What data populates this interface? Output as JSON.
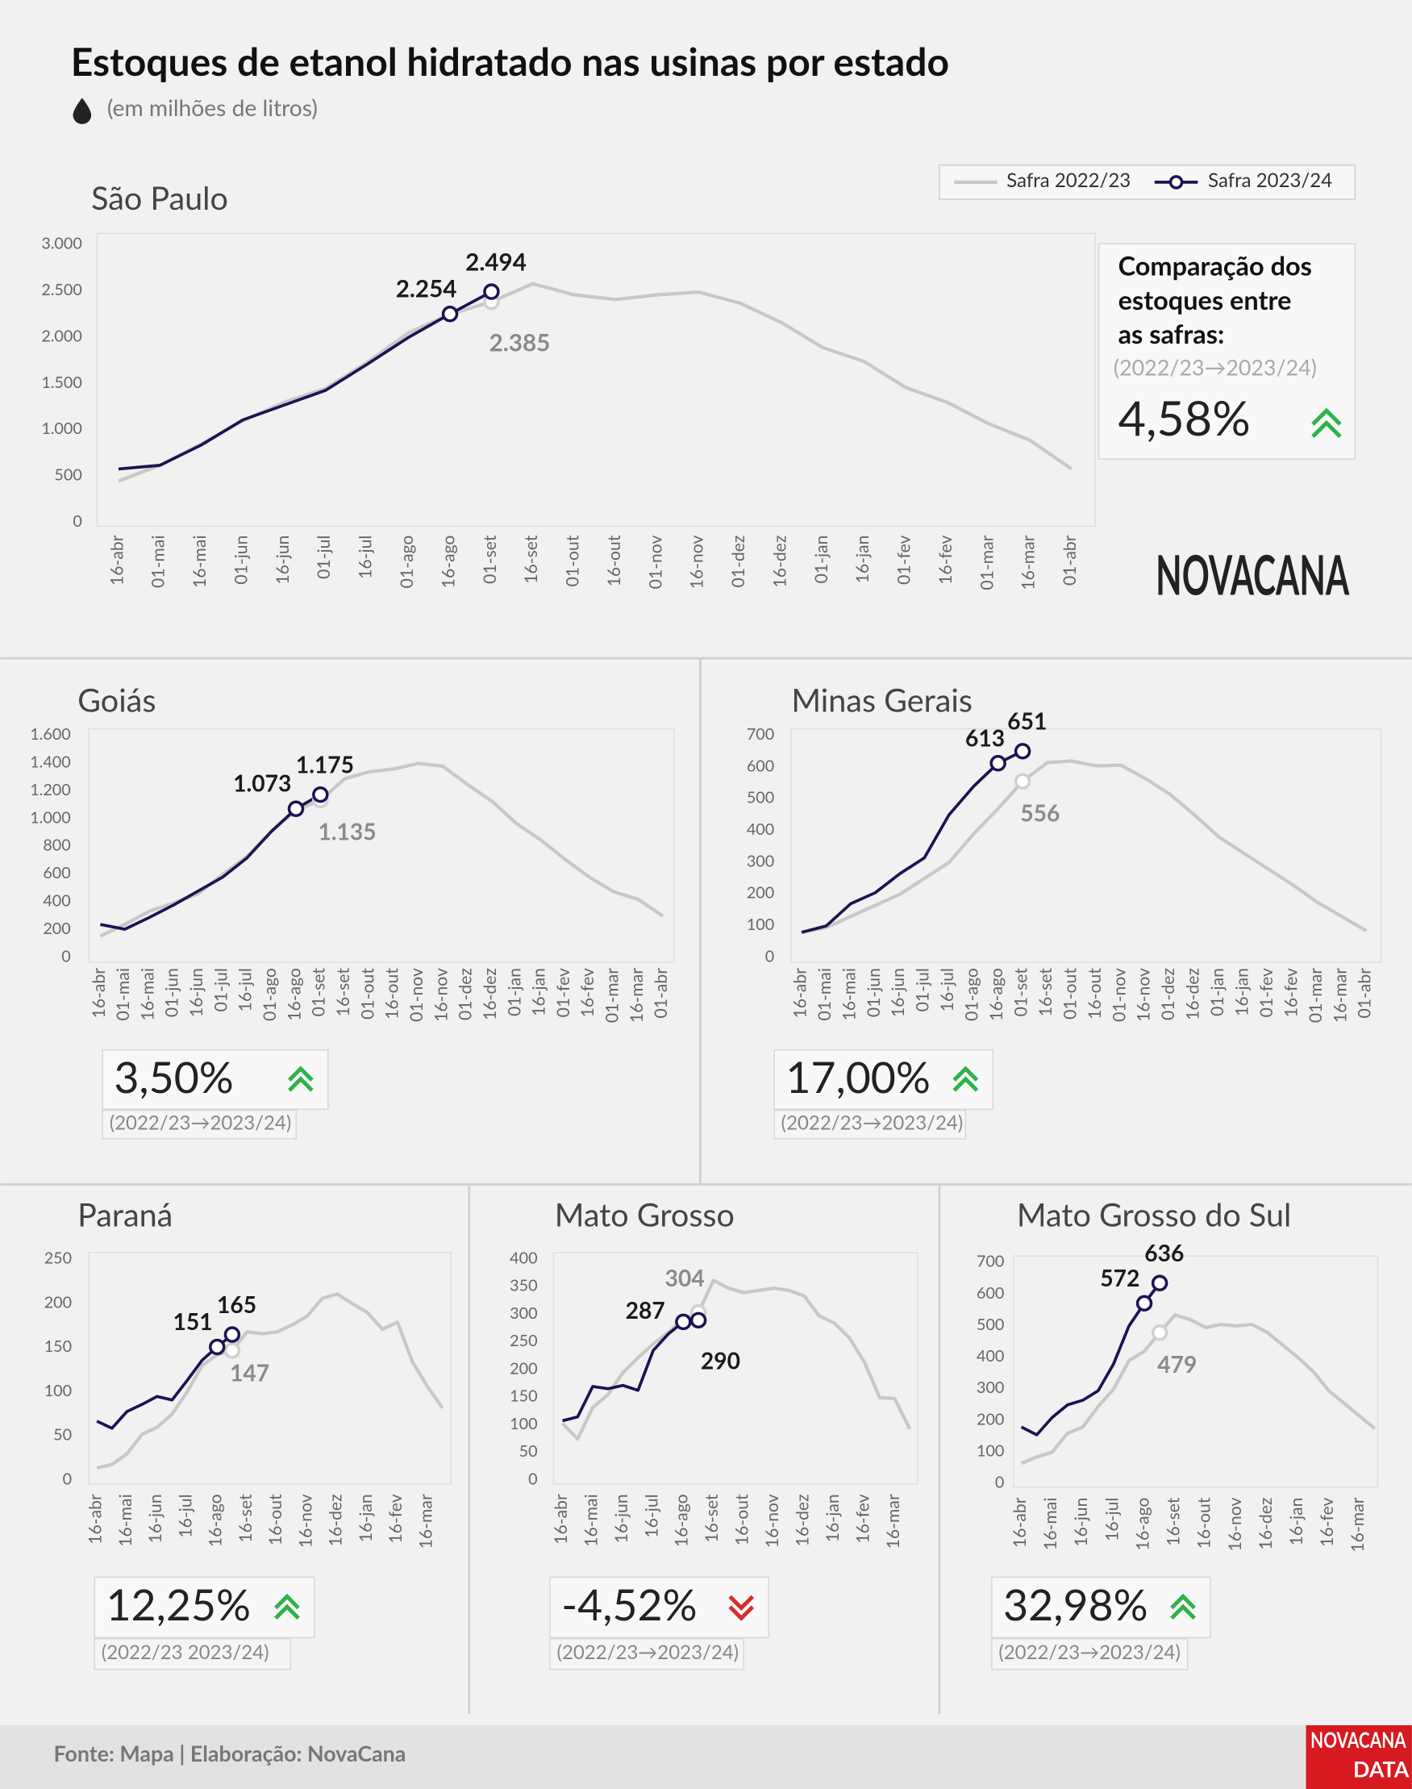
{
  "title": "Estoques de etanol hidratado nas usinas por estado",
  "subtitle": "(em milhões de litros)",
  "logo": "NOVACANA",
  "source": "Fonte: Mapa | Elaboração: NovaCana",
  "data_logo": {
    "top": "NOVACANA",
    "bottom": "DATA"
  },
  "chart_data": [
    {
      "type": "line",
      "title": "São Paulo",
      "categories": [
        "16-abr",
        "01-mai",
        "16-mai",
        "01-jun",
        "16-jun",
        "01-jul",
        "16-jul",
        "01-ago",
        "16-ago",
        "01-set",
        "16-set",
        "01-out",
        "16-out",
        "01-nov",
        "16-nov",
        "01-dez",
        "16-dez",
        "01-jan",
        "16-jan",
        "01-fev",
        "16-fev",
        "01-mar",
        "16-mar",
        "01-abr"
      ],
      "series": [
        {
          "name": "Safra 2022/23",
          "color": "#c8c8c8",
          "values": [
            450,
            620,
            850,
            1100,
            1300,
            1450,
            1730,
            2050,
            2250,
            2385,
            2580,
            2460,
            2410,
            2460,
            2490,
            2370,
            2160,
            1890,
            1740,
            1460,
            1300,
            1070,
            890,
            580
          ],
          "value_labels": [
            null,
            null,
            null,
            null,
            null,
            null,
            null,
            null,
            null,
            "2.385",
            null,
            null,
            null,
            null,
            null,
            null,
            null,
            null,
            null,
            null,
            null,
            null,
            null,
            null
          ]
        },
        {
          "name": "Safra 2023/24",
          "color": "#1b1452",
          "values": [
            580,
            620,
            840,
            1110,
            1270,
            1430,
            1710,
            2000,
            2254,
            2494,
            null,
            null,
            null,
            null,
            null,
            null,
            null,
            null,
            null,
            null,
            null,
            null,
            null,
            null
          ],
          "value_labels": [
            null,
            null,
            null,
            null,
            null,
            null,
            null,
            null,
            "2.254",
            "2.494",
            null,
            null,
            null,
            null,
            null,
            null,
            null,
            null,
            null,
            null,
            null,
            null,
            null,
            null
          ]
        }
      ],
      "ylim": [
        0,
        3000
      ],
      "yticks": [
        0,
        500,
        {
          "value": 1000,
          "label": "1.000"
        },
        {
          "value": 1500,
          "label": "1.500"
        },
        {
          "value": 2000,
          "label": "2.000"
        },
        {
          "value": 2500,
          "label": "2.500"
        },
        {
          "value": 3000,
          "label": "3.000"
        }
      ],
      "grid": false,
      "legend": "top-right",
      "comparison": {
        "heading": [
          "Comparação dos",
          "estoques entre",
          "as safras:"
        ],
        "note": "(2022/23→2023/24)",
        "change": "4,58%",
        "trend": "up"
      }
    },
    {
      "type": "line",
      "title": "Goiás",
      "categories": [
        "16-abr",
        "01-mai",
        "16-mai",
        "01-jun",
        "16-jun",
        "01-jul",
        "16-jul",
        "01-ago",
        "16-ago",
        "01-set",
        "16-set",
        "01-out",
        "16-out",
        "01-nov",
        "16-nov",
        "01-dez",
        "16-dez",
        "01-jan",
        "16-jan",
        "01-fev",
        "16-fev",
        "01-mar",
        "16-mar",
        "01-abr"
      ],
      "series": [
        {
          "color": "#c8c8c8",
          "values": [
            155,
            240,
            335,
            395,
            460,
            600,
            730,
            910,
            1060,
            1135,
            1290,
            1340,
            1360,
            1400,
            1380,
            1250,
            1130,
            970,
            850,
            710,
            580,
            475,
            420,
            300
          ],
          "value_labels": [
            null,
            null,
            null,
            null,
            null,
            null,
            null,
            null,
            null,
            "1.135",
            null,
            null,
            null,
            null,
            null,
            null,
            null,
            null,
            null,
            null,
            null,
            null,
            null,
            null
          ]
        },
        {
          "color": "#1b1452",
          "values": [
            240,
            205,
            290,
            380,
            480,
            580,
            720,
            910,
            1073,
            1175,
            null,
            null,
            null,
            null,
            null,
            null,
            null,
            null,
            null,
            null,
            null,
            null,
            null,
            null
          ],
          "value_labels": [
            null,
            null,
            null,
            null,
            null,
            null,
            null,
            null,
            "1.073",
            "1.175",
            null,
            null,
            null,
            null,
            null,
            null,
            null,
            null,
            null,
            null,
            null,
            null,
            null,
            null
          ]
        }
      ],
      "ylim": [
        0,
        1600
      ],
      "yticks": [
        0,
        200,
        400,
        600,
        800,
        {
          "value": 1000,
          "label": "1.000"
        },
        {
          "value": 1200,
          "label": "1.200"
        },
        {
          "value": 1400,
          "label": "1.400"
        },
        {
          "value": 1600,
          "label": "1.600"
        }
      ],
      "grid": false,
      "comparison": {
        "note": "(2022/23→2023/24)",
        "change": "3,50%",
        "trend": "up"
      }
    },
    {
      "type": "line",
      "title": "Minas Gerais",
      "categories": [
        "16-abr",
        "01-mai",
        "16-mai",
        "01-jun",
        "16-jun",
        "01-jul",
        "16-jul",
        "01-ago",
        "16-ago",
        "01-set",
        "16-set",
        "01-out",
        "16-out",
        "01-nov",
        "16-nov",
        "01-dez",
        "16-dez",
        "01-jan",
        "16-jan",
        "01-fev",
        "16-fev",
        "01-mar",
        "16-mar",
        "01-abr"
      ],
      "series": [
        {
          "color": "#c8c8c8",
          "values": [
            80,
            95,
            130,
            165,
            200,
            250,
            300,
            390,
            470,
            556,
            615,
            620,
            605,
            607,
            565,
            515,
            450,
            380,
            330,
            280,
            230,
            175,
            130,
            85
          ],
          "value_labels": [
            null,
            null,
            null,
            null,
            null,
            null,
            null,
            null,
            null,
            "556",
            null,
            null,
            null,
            null,
            null,
            null,
            null,
            null,
            null,
            null,
            null,
            null,
            null,
            null
          ]
        },
        {
          "color": "#1b1452",
          "values": [
            80,
            100,
            170,
            205,
            265,
            315,
            450,
            540,
            613,
            651,
            null,
            null,
            null,
            null,
            null,
            null,
            null,
            null,
            null,
            null,
            null,
            null,
            null,
            null
          ],
          "value_labels": [
            null,
            null,
            null,
            null,
            null,
            null,
            null,
            null,
            "613",
            "651",
            null,
            null,
            null,
            null,
            null,
            null,
            null,
            null,
            null,
            null,
            null,
            null,
            null,
            null
          ]
        }
      ],
      "ylim": [
        0,
        700
      ],
      "yticks": [
        0,
        100,
        200,
        300,
        400,
        500,
        600,
        700
      ],
      "grid": false,
      "comparison": {
        "note": "(2022/23→2023/24)",
        "change": "17,00%",
        "trend": "up"
      }
    },
    {
      "type": "line",
      "title": "Paraná",
      "categories": [
        "16-abr",
        null,
        "16-mai",
        null,
        "16-jun",
        null,
        "16-jul",
        null,
        "16-ago",
        null,
        "16-set",
        null,
        "16-out",
        null,
        "16-nov",
        null,
        "16-dez",
        null,
        "16-jan",
        null,
        "16-fev",
        null,
        "16-mar",
        null
      ],
      "series": [
        {
          "color": "#c8c8c8",
          "values": [
            14,
            18,
            30,
            52,
            60,
            75,
            100,
            130,
            142,
            147,
            168,
            166,
            168,
            176,
            186,
            206,
            211,
            200,
            190,
            171,
            179,
            134,
            106,
            82
          ],
          "value_labels": [
            null,
            null,
            null,
            null,
            null,
            null,
            null,
            null,
            null,
            "147",
            null,
            null,
            null,
            null,
            null,
            null,
            null,
            null,
            null,
            null,
            null,
            null,
            null,
            null
          ]
        },
        {
          "color": "#1b1452",
          "values": [
            67,
            59,
            78,
            86,
            95,
            91,
            113,
            136,
            151,
            165,
            null,
            null,
            null,
            null,
            null,
            null,
            null,
            null,
            null,
            null,
            null,
            null,
            null,
            null
          ],
          "value_labels": [
            null,
            null,
            null,
            null,
            null,
            null,
            null,
            null,
            "151",
            "165",
            null,
            null,
            null,
            null,
            null,
            null,
            null,
            null,
            null,
            null,
            null,
            null,
            null,
            null
          ]
        }
      ],
      "ylim": [
        0,
        250
      ],
      "yticks": [
        0,
        50,
        100,
        150,
        200,
        250
      ],
      "grid": false,
      "comparison": {
        "note": "(2022/23   2023/24)",
        "change": "12,25%",
        "trend": "up"
      }
    },
    {
      "type": "line",
      "title": "Mato Grosso",
      "categories": [
        "16-abr",
        null,
        "16-mai",
        null,
        "16-jun",
        null,
        "16-jul",
        null,
        "16-ago",
        null,
        "16-set",
        null,
        "16-out",
        null,
        "16-nov",
        null,
        "16-dez",
        null,
        "16-jan",
        null,
        "16-fev",
        null,
        "16-mar",
        null
      ],
      "series": [
        {
          "color": "#c8c8c8",
          "values": [
            103,
            75,
            132,
            155,
            195,
            222,
            247,
            268,
            292,
            304,
            362,
            348,
            340,
            344,
            348,
            344,
            334,
            298,
            285,
            258,
            214,
            150,
            148,
            93
          ],
          "value_labels": [
            null,
            null,
            null,
            null,
            null,
            null,
            null,
            null,
            null,
            "304",
            null,
            null,
            null,
            null,
            null,
            null,
            null,
            null,
            null,
            null,
            null,
            null,
            null,
            null
          ]
        },
        {
          "color": "#1b1452",
          "values": [
            108,
            115,
            170,
            166,
            172,
            163,
            235,
            265,
            287,
            290,
            null,
            null,
            null,
            null,
            null,
            null,
            null,
            null,
            null,
            null,
            null,
            null,
            null,
            null
          ],
          "value_labels": [
            null,
            null,
            null,
            null,
            null,
            null,
            null,
            null,
            "287",
            "290",
            null,
            null,
            null,
            null,
            null,
            null,
            null,
            null,
            null,
            null,
            null,
            null,
            null,
            null
          ]
        }
      ],
      "ylim": [
        0,
        400
      ],
      "yticks": [
        0,
        50,
        100,
        150,
        200,
        250,
        300,
        350,
        400
      ],
      "grid": false,
      "comparison": {
        "note": "(2022/23→2023/24)",
        "change": "-4,52%",
        "trend": "down"
      }
    },
    {
      "type": "line",
      "title": "Mato Grosso do Sul",
      "categories": [
        "16-abr",
        null,
        "16-mai",
        null,
        "16-jun",
        null,
        "16-jul",
        null,
        "16-ago",
        null,
        "16-set",
        null,
        "16-out",
        null,
        "16-nov",
        null,
        "16-dez",
        null,
        "16-jan",
        null,
        "16-fev",
        null,
        "16-mar",
        null
      ],
      "series": [
        {
          "color": "#c8c8c8",
          "values": [
            65,
            85,
            100,
            160,
            180,
            245,
            300,
            390,
            420,
            479,
            535,
            520,
            495,
            505,
            500,
            505,
            480,
            440,
            400,
            355,
            295,
            255,
            215,
            175
          ],
          "value_labels": [
            null,
            null,
            null,
            null,
            null,
            null,
            null,
            null,
            null,
            "479",
            null,
            null,
            null,
            null,
            null,
            null,
            null,
            null,
            null,
            null,
            null,
            null,
            null,
            null
          ]
        },
        {
          "color": "#1b1452",
          "values": [
            180,
            155,
            210,
            250,
            265,
            295,
            380,
            500,
            572,
            636,
            null,
            null,
            null,
            null,
            null,
            null,
            null,
            null,
            null,
            null,
            null,
            null,
            null,
            null
          ],
          "value_labels": [
            null,
            null,
            null,
            null,
            null,
            null,
            null,
            null,
            "572",
            "636",
            null,
            null,
            null,
            null,
            null,
            null,
            null,
            null,
            null,
            null,
            null,
            null,
            null,
            null
          ]
        }
      ],
      "ylim": [
        0,
        700
      ],
      "yticks": [
        0,
        100,
        200,
        300,
        400,
        500,
        600,
        700
      ],
      "grid": false,
      "comparison": {
        "note": "(2022/23→2023/24)",
        "change": "32,98%",
        "trend": "up"
      }
    }
  ]
}
